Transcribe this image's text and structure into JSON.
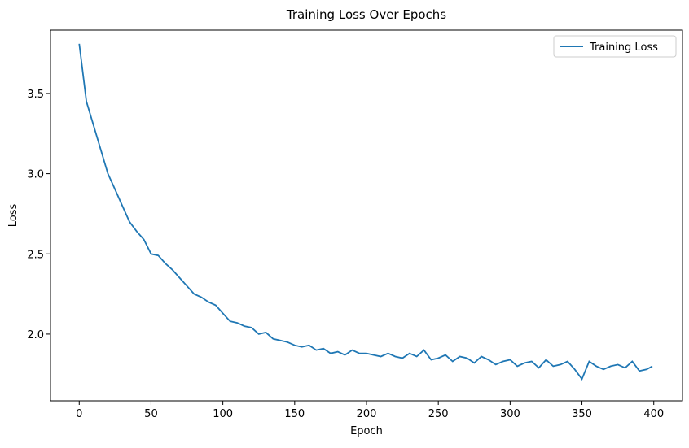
{
  "chart_data": {
    "type": "line",
    "title": "Training Loss Over Epochs",
    "xlabel": "Epoch",
    "ylabel": "Loss",
    "x": [
      0,
      5,
      10,
      15,
      20,
      25,
      30,
      35,
      40,
      45,
      50,
      55,
      60,
      65,
      70,
      75,
      80,
      85,
      90,
      95,
      100,
      105,
      110,
      115,
      120,
      125,
      130,
      135,
      140,
      145,
      150,
      155,
      160,
      165,
      170,
      175,
      180,
      185,
      190,
      195,
      200,
      205,
      210,
      215,
      220,
      225,
      230,
      235,
      240,
      245,
      250,
      255,
      260,
      265,
      270,
      275,
      280,
      285,
      290,
      295,
      300,
      305,
      310,
      315,
      320,
      325,
      330,
      335,
      340,
      345,
      350,
      355,
      360,
      365,
      370,
      375,
      380,
      385,
      390,
      395,
      399
    ],
    "series": [
      {
        "name": "Training Loss",
        "color": "#1f77b4",
        "values": [
          3.81,
          3.45,
          3.3,
          3.15,
          3.0,
          2.9,
          2.8,
          2.7,
          2.64,
          2.59,
          2.5,
          2.49,
          2.44,
          2.4,
          2.35,
          2.3,
          2.25,
          2.23,
          2.2,
          2.18,
          2.13,
          2.08,
          2.07,
          2.05,
          2.04,
          2.0,
          2.01,
          1.97,
          1.96,
          1.95,
          1.93,
          1.92,
          1.93,
          1.9,
          1.91,
          1.88,
          1.89,
          1.87,
          1.9,
          1.88,
          1.88,
          1.87,
          1.86,
          1.88,
          1.86,
          1.85,
          1.88,
          1.86,
          1.9,
          1.84,
          1.85,
          1.87,
          1.83,
          1.86,
          1.85,
          1.82,
          1.86,
          1.84,
          1.81,
          1.83,
          1.84,
          1.8,
          1.82,
          1.83,
          1.79,
          1.84,
          1.8,
          1.81,
          1.83,
          1.78,
          1.72,
          1.83,
          1.8,
          1.78,
          1.8,
          1.81,
          1.79,
          1.83,
          1.77,
          1.78,
          1.8
        ]
      }
    ],
    "xlim": [
      -20,
      420
    ],
    "xticks": [
      0,
      50,
      100,
      150,
      200,
      250,
      300,
      350,
      400
    ],
    "ylim": [
      1.584,
      3.895
    ],
    "yticks": [
      {
        "value": 2.0,
        "label": "2.0"
      },
      2.5,
      {
        "value": 3.0,
        "label": "3.0"
      },
      3.5
    ],
    "legend": "upper right"
  }
}
